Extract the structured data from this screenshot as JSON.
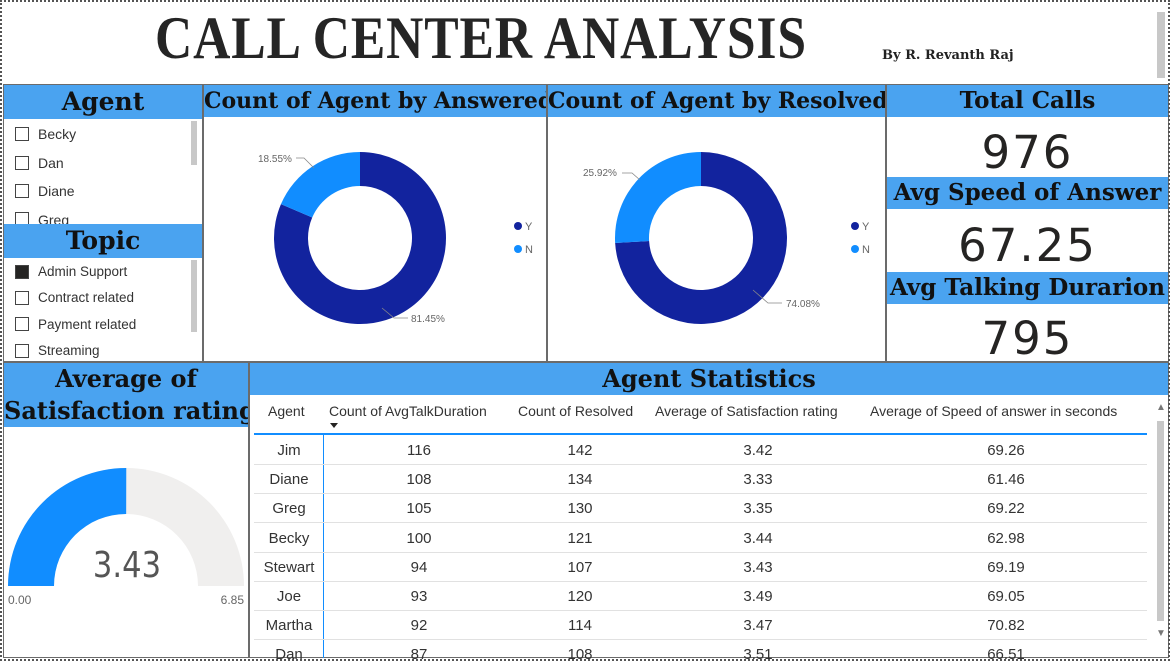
{
  "header": {
    "title": "CALL CENTER ANALYSIS",
    "author": "By R. Revanth Raj"
  },
  "agent_slicer": {
    "title": "Agent",
    "items": [
      "Becky",
      "Dan",
      "Diane",
      "Greg"
    ]
  },
  "topic_slicer": {
    "title": "Topic",
    "items": [
      {
        "label": "Admin Support",
        "checked": true
      },
      {
        "label": "Contract related",
        "checked": false
      },
      {
        "label": "Payment related",
        "checked": false
      },
      {
        "label": "Streaming",
        "checked": false
      }
    ]
  },
  "answered_chart": {
    "title": "Count of Agent by Answered",
    "legend": [
      "Y",
      "N"
    ],
    "labels": [
      "81.45%",
      "18.55%"
    ]
  },
  "resolved_chart": {
    "title": "Count of Agent by Resolved",
    "legend": [
      "Y",
      "N"
    ],
    "labels": [
      "74.08%",
      "25.92%"
    ]
  },
  "kpis": {
    "total_calls": {
      "title": "Total Calls",
      "value": "976"
    },
    "avg_speed": {
      "title": "Avg Speed of Answer",
      "value": "67.25"
    },
    "avg_talk": {
      "title": "Avg Talking Durarion",
      "value": "795"
    }
  },
  "gauge": {
    "title_line1": "Average of",
    "title_line2": "Satisfaction rating",
    "value_label": "3.43",
    "min_label": "0.00",
    "max_label": "6.85"
  },
  "table": {
    "title": "Agent Statistics",
    "columns": [
      "Agent",
      "Count of AvgTalkDuration",
      "Count of Resolved",
      "Average of Satisfaction rating",
      "Average of Speed of answer in seconds"
    ],
    "rows": [
      [
        "Jim",
        "116",
        "142",
        "3.42",
        "69.26"
      ],
      [
        "Diane",
        "108",
        "134",
        "3.33",
        "61.46"
      ],
      [
        "Greg",
        "105",
        "130",
        "3.35",
        "69.22"
      ],
      [
        "Becky",
        "100",
        "121",
        "3.44",
        "62.98"
      ],
      [
        "Stewart",
        "94",
        "107",
        "3.43",
        "69.19"
      ],
      [
        "Joe",
        "93",
        "120",
        "3.49",
        "69.05"
      ],
      [
        "Martha",
        "92",
        "114",
        "3.47",
        "70.82"
      ],
      [
        "Dan",
        "87",
        "108",
        "3.51",
        "66.51"
      ]
    ]
  },
  "chart_data": [
    {
      "type": "pie",
      "title": "Count of Agent by Answered",
      "categories": [
        "Y",
        "N"
      ],
      "values": [
        81.45,
        18.55
      ],
      "colors": [
        "#12239e",
        "#118dff"
      ],
      "legend": "right"
    },
    {
      "type": "pie",
      "title": "Count of Agent by Resolved",
      "categories": [
        "Y",
        "N"
      ],
      "values": [
        74.08,
        25.92
      ],
      "colors": [
        "#12239e",
        "#118dff"
      ],
      "legend": "right"
    },
    {
      "type": "gauge",
      "title": "Average of Satisfaction rating",
      "value": 3.43,
      "min": 0,
      "max": 6.85,
      "colors": [
        "#118dff",
        "#f0efee"
      ]
    }
  ]
}
